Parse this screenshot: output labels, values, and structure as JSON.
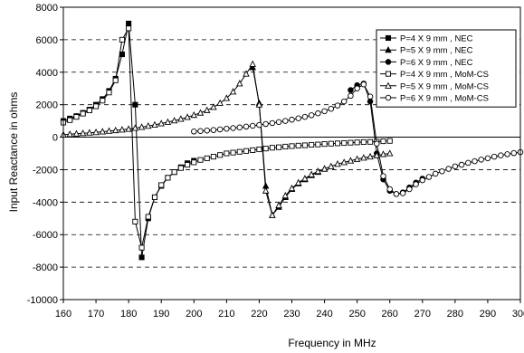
{
  "chart_data": {
    "type": "line",
    "xlabel": "Frequency in MHz",
    "ylabel": "Input Reactance in ohms",
    "xlim": [
      160,
      300
    ],
    "ylim": [
      -10000,
      8000
    ],
    "x_ticks": [
      "160",
      "170",
      "180",
      "190",
      "200",
      "210",
      "220",
      "230",
      "240",
      "250",
      "260",
      "270",
      "280",
      "290",
      "300"
    ],
    "y_ticks": [
      "8000",
      "6000",
      "4000",
      "2000",
      "0",
      "-2000",
      "-4000",
      "-6000",
      "-8000",
      "-10000"
    ],
    "grid": "horizontal dashed",
    "legend_position": "top-right",
    "series": [
      {
        "name": "P=4 X 9 mm , NEC",
        "marker": "square",
        "filled": true,
        "segments": [
          [
            [
              160,
              1000
            ],
            [
              162,
              1150
            ],
            [
              164,
              1300
            ],
            [
              166,
              1500
            ],
            [
              168,
              1700
            ],
            [
              170,
              2000
            ],
            [
              172,
              2350
            ],
            [
              174,
              2850
            ],
            [
              176,
              3600
            ],
            [
              178,
              5100
            ],
            [
              180,
              7000
            ],
            [
              182,
              2000
            ],
            [
              184,
              -7400
            ],
            [
              186,
              -5000
            ],
            [
              188,
              -3700
            ],
            [
              190,
              -3000
            ],
            [
              192,
              -2500
            ],
            [
              194,
              -2150
            ],
            [
              196,
              -1850
            ],
            [
              198,
              -1600
            ],
            [
              200,
              -1450
            ]
          ]
        ]
      },
      {
        "name": "P=5 X 9 mm , NEC",
        "marker": "triangle",
        "filled": true,
        "segments": [
          [
            [
              218,
              4300
            ],
            [
              220,
              2100
            ],
            [
              222,
              -3000
            ],
            [
              224,
              -4800
            ],
            [
              226,
              -4300
            ],
            [
              228,
              -3700
            ],
            [
              230,
              -3200
            ],
            [
              232,
              -2850
            ],
            [
              234,
              -2600
            ],
            [
              236,
              -2350
            ],
            [
              238,
              -2150
            ],
            [
              240,
              -1950
            ]
          ]
        ]
      },
      {
        "name": "P=6 X 9 mm , NEC",
        "marker": "circle",
        "filled": true,
        "segments": [
          [
            [
              248,
              2900
            ],
            [
              250,
              3200
            ],
            [
              252,
              3300
            ],
            [
              254,
              2200
            ],
            [
              256,
              -1000
            ],
            [
              258,
              -2600
            ],
            [
              260,
              -3300
            ],
            [
              262,
              -3500
            ],
            [
              264,
              -3400
            ],
            [
              266,
              -3100
            ],
            [
              268,
              -2800
            ],
            [
              270,
              -2550
            ]
          ]
        ]
      },
      {
        "name": "P=4 X 9 mm , MoM-CS",
        "marker": "square",
        "filled": false,
        "segments": [
          [
            [
              160,
              900
            ],
            [
              162,
              1050
            ],
            [
              164,
              1250
            ],
            [
              166,
              1450
            ],
            [
              168,
              1650
            ],
            [
              170,
              1900
            ],
            [
              172,
              2250
            ],
            [
              174,
              2750
            ],
            [
              176,
              3500
            ],
            [
              178,
              6000
            ],
            [
              180,
              6700
            ],
            [
              182,
              -5200
            ],
            [
              184,
              -6800
            ],
            [
              186,
              -4900
            ],
            [
              188,
              -3700
            ],
            [
              190,
              -2950
            ],
            [
              192,
              -2500
            ],
            [
              194,
              -2150
            ],
            [
              196,
              -1900
            ],
            [
              198,
              -1700
            ],
            [
              200,
              -1550
            ],
            [
              202,
              -1400
            ],
            [
              204,
              -1300
            ],
            [
              206,
              -1200
            ],
            [
              208,
              -1100
            ],
            [
              210,
              -1000
            ],
            [
              212,
              -950
            ],
            [
              214,
              -900
            ],
            [
              216,
              -850
            ],
            [
              218,
              -800
            ],
            [
              220,
              -750
            ],
            [
              222,
              -700
            ],
            [
              224,
              -650
            ],
            [
              226,
              -620
            ],
            [
              228,
              -580
            ],
            [
              230,
              -550
            ],
            [
              232,
              -520
            ],
            [
              234,
              -500
            ],
            [
              236,
              -470
            ],
            [
              238,
              -450
            ],
            [
              240,
              -420
            ],
            [
              242,
              -400
            ],
            [
              244,
              -380
            ],
            [
              246,
              -360
            ],
            [
              248,
              -340
            ],
            [
              250,
              -320
            ],
            [
              252,
              -300
            ],
            [
              254,
              -290
            ],
            [
              256,
              -270
            ],
            [
              258,
              -250
            ],
            [
              260,
              -230
            ]
          ]
        ]
      },
      {
        "name": "P=5 X 9 mm , MoM-CS",
        "marker": "triangle",
        "filled": false,
        "segments": [
          [
            [
              160,
              150
            ],
            [
              162,
              180
            ],
            [
              164,
              210
            ],
            [
              166,
              240
            ],
            [
              168,
              270
            ],
            [
              170,
              300
            ],
            [
              172,
              340
            ],
            [
              174,
              380
            ],
            [
              176,
              420
            ],
            [
              178,
              460
            ],
            [
              180,
              500
            ],
            [
              182,
              560
            ],
            [
              184,
              620
            ],
            [
              186,
              690
            ],
            [
              188,
              760
            ],
            [
              190,
              840
            ],
            [
              192,
              930
            ],
            [
              194,
              1020
            ],
            [
              196,
              1120
            ],
            [
              198,
              1230
            ],
            [
              200,
              1360
            ],
            [
              202,
              1500
            ],
            [
              204,
              1660
            ],
            [
              206,
              1850
            ],
            [
              208,
              2100
            ],
            [
              210,
              2400
            ],
            [
              212,
              2800
            ],
            [
              214,
              3300
            ],
            [
              216,
              3900
            ],
            [
              218,
              4500
            ],
            [
              220,
              2000
            ],
            [
              222,
              -3300
            ],
            [
              224,
              -4800
            ],
            [
              226,
              -4200
            ],
            [
              228,
              -3600
            ],
            [
              230,
              -3150
            ],
            [
              232,
              -2800
            ],
            [
              234,
              -2550
            ],
            [
              236,
              -2300
            ],
            [
              238,
              -2100
            ],
            [
              240,
              -1950
            ],
            [
              242,
              -1800
            ],
            [
              244,
              -1650
            ],
            [
              246,
              -1550
            ],
            [
              248,
              -1450
            ],
            [
              250,
              -1350
            ],
            [
              252,
              -1270
            ],
            [
              254,
              -1200
            ],
            [
              256,
              -1120
            ],
            [
              258,
              -1050
            ],
            [
              260,
              -1000
            ]
          ]
        ]
      },
      {
        "name": "P=6 X 9 mm , MoM-CS",
        "marker": "circle",
        "filled": false,
        "segments": [
          [
            [
              200,
              350
            ],
            [
              202,
              380
            ],
            [
              204,
              410
            ],
            [
              206,
              440
            ],
            [
              208,
              480
            ],
            [
              210,
              520
            ],
            [
              212,
              560
            ],
            [
              214,
              600
            ],
            [
              216,
              650
            ],
            [
              218,
              700
            ],
            [
              220,
              750
            ],
            [
              222,
              810
            ],
            [
              224,
              870
            ],
            [
              226,
              930
            ],
            [
              228,
              1000
            ],
            [
              230,
              1080
            ],
            [
              232,
              1160
            ],
            [
              234,
              1250
            ],
            [
              236,
              1350
            ],
            [
              238,
              1470
            ],
            [
              240,
              1600
            ],
            [
              242,
              1750
            ],
            [
              244,
              1950
            ],
            [
              246,
              2200
            ],
            [
              248,
              2550
            ],
            [
              250,
              3000
            ],
            [
              252,
              3250
            ],
            [
              254,
              2500
            ],
            [
              256,
              -400
            ],
            [
              258,
              -2400
            ],
            [
              260,
              -3200
            ],
            [
              262,
              -3500
            ],
            [
              264,
              -3450
            ],
            [
              266,
              -3200
            ],
            [
              268,
              -2900
            ],
            [
              270,
              -2650
            ],
            [
              272,
              -2450
            ],
            [
              274,
              -2250
            ],
            [
              276,
              -2100
            ],
            [
              278,
              -1950
            ],
            [
              280,
              -1800
            ],
            [
              282,
              -1700
            ],
            [
              284,
              -1580
            ],
            [
              286,
              -1480
            ],
            [
              288,
              -1380
            ],
            [
              290,
              -1300
            ],
            [
              292,
              -1200
            ],
            [
              294,
              -1120
            ],
            [
              296,
              -1050
            ],
            [
              298,
              -980
            ],
            [
              300,
              -920
            ]
          ]
        ]
      }
    ]
  }
}
